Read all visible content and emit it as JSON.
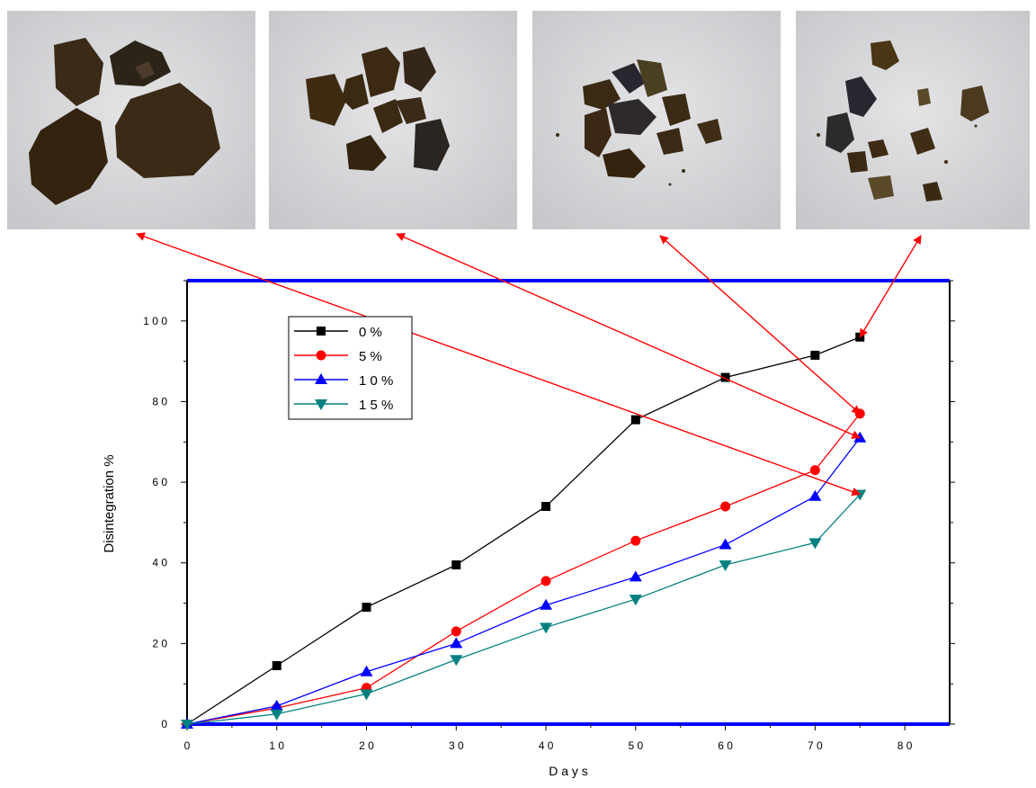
{
  "chart_data": {
    "type": "line",
    "xlabel": "D a y s",
    "ylabel": "Disintegration %",
    "xlim": [
      0,
      85
    ],
    "ylim": [
      0,
      110
    ],
    "xticks": [
      0,
      10,
      20,
      30,
      40,
      50,
      60,
      70,
      80
    ],
    "yticks": [
      0,
      20,
      40,
      60,
      80,
      100
    ],
    "xtick_labels": [
      "0",
      "1 0",
      "2 0",
      "3 0",
      "4 0",
      "5 0",
      "6 0",
      "7 0",
      "8 0"
    ],
    "ytick_labels": [
      "0",
      "2 0",
      "4 0",
      "6 0",
      "8 0",
      "1 0 0"
    ],
    "grid": false,
    "legend_position": "top-left",
    "x": [
      0,
      10,
      20,
      30,
      40,
      50,
      60,
      70,
      75
    ],
    "series": [
      {
        "name": "0 %",
        "color": "#000000",
        "marker": "square",
        "values": [
          0,
          14.5,
          29,
          39.5,
          54,
          75.5,
          86,
          91.5,
          96
        ]
      },
      {
        "name": "5 %",
        "color": "#ff0000",
        "marker": "circle",
        "values": [
          0,
          4,
          9,
          23,
          35.5,
          45.5,
          54,
          63,
          77
        ]
      },
      {
        "name": "1 0 %",
        "color": "#0000ff",
        "marker": "triangle-up",
        "values": [
          0,
          4.5,
          13,
          20,
          29.5,
          36.5,
          44.5,
          56.5,
          71
        ]
      },
      {
        "name": "1 5 %",
        "color": "#008080",
        "marker": "triangle-down",
        "values": [
          0,
          2.5,
          7.5,
          16,
          24,
          31,
          39.5,
          45,
          57
        ]
      }
    ],
    "photos": [
      {
        "name": "photo-sample-1",
        "points_to_series": "1 5 %"
      },
      {
        "name": "photo-sample-2",
        "points_to_series": "1 0 %"
      },
      {
        "name": "photo-sample-3",
        "points_to_series": "5 %"
      },
      {
        "name": "photo-sample-4",
        "points_to_series": "0 %"
      }
    ],
    "axis_line_color": "#0000ff",
    "arrow_color": "#ff0000"
  }
}
